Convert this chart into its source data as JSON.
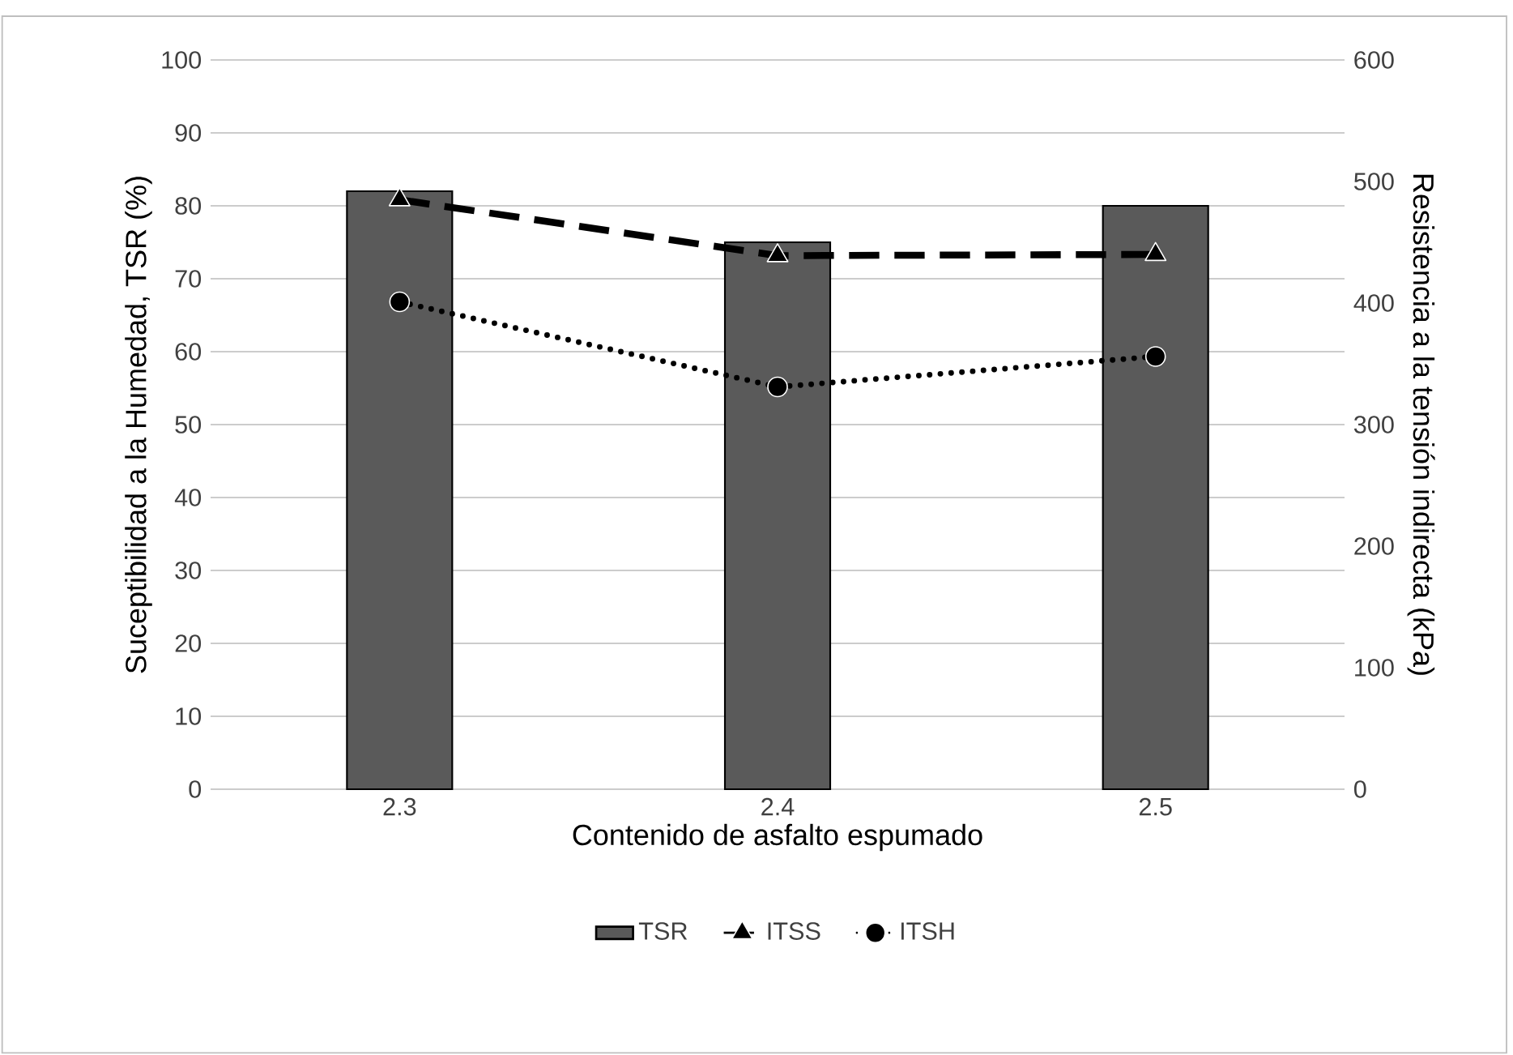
{
  "chart_data": {
    "type": "bar",
    "xlabel": "Contenido de asfalto espumado",
    "ylabel": "Suceptibilidad a la Humedad, TSR (%)",
    "y2label": "Resistencia a la tensión indirecta (kPa)",
    "categories": [
      "2.3",
      "2.4",
      "2.5"
    ],
    "series": [
      {
        "name": "TSR",
        "color": "#5a5a5a",
        "values": [
          82,
          75,
          80
        ]
      },
      {
        "name": "ITSS",
        "type": "line",
        "axis": "y2",
        "color": "#000000",
        "marker": "triangle",
        "line_style": "dashed",
        "values": [
          485,
          439,
          440
        ]
      },
      {
        "name": "ITSH",
        "type": "line",
        "axis": "y2",
        "color": "#000000",
        "marker": "circle",
        "line_style": "dotted",
        "values": [
          401,
          331,
          356
        ]
      }
    ],
    "ylim": [
      0,
      100
    ],
    "yticks": [
      0,
      10,
      20,
      30,
      40,
      50,
      60,
      70,
      80,
      90,
      100
    ],
    "y2lim": [
      0,
      600
    ],
    "y2ticks": [
      0,
      100,
      200,
      300,
      400,
      500,
      600
    ],
    "grid": "y",
    "legend": "bottom"
  }
}
